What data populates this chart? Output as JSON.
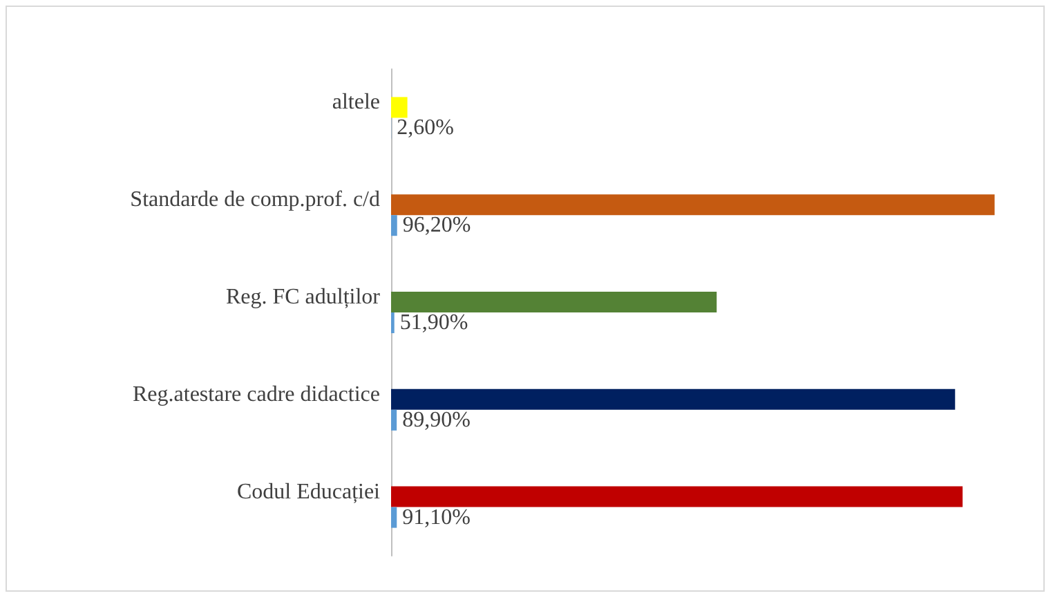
{
  "chart_data": {
    "type": "bar",
    "orientation": "horizontal",
    "categories": [
      "altele",
      "Standarde de comp.prof. c/d",
      "Reg. FC adulților",
      "Reg.atestare cadre didactice",
      "Codul Educației"
    ],
    "series": [
      {
        "colors": [
          "#ffff00",
          "#c55a11",
          "#548235",
          "#002060",
          "#c00000"
        ],
        "values": [
          2.6,
          96.2,
          51.9,
          89.9,
          91.1
        ]
      },
      {
        "color": "#5b9bd5",
        "values": [
          0.026,
          0.962,
          0.519,
          0.899,
          0.911
        ],
        "value_labels": [
          "2,60%",
          "96,20%",
          "51,90%",
          "89,90%",
          "91,10%"
        ]
      }
    ],
    "tick_labels": "y",
    "grid": false
  }
}
